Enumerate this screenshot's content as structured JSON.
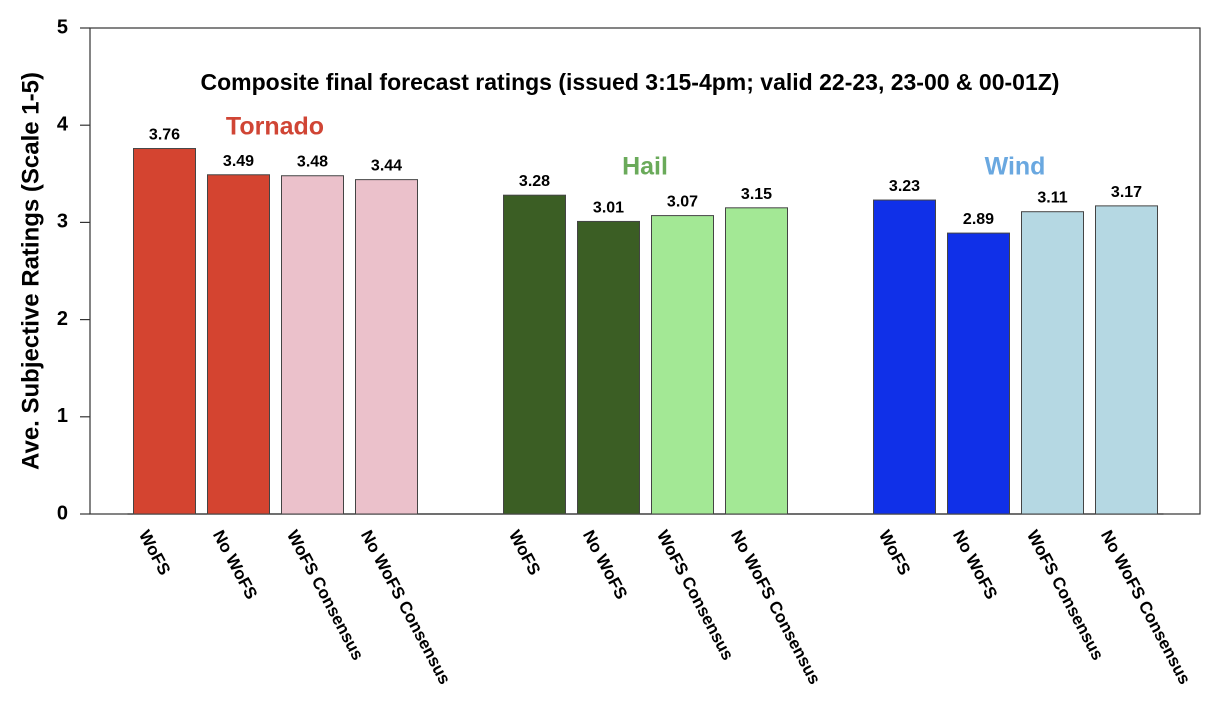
{
  "chart_data": {
    "type": "bar",
    "title": "Composite final forecast ratings (issued 3:15-4pm; valid 22-23, 23-00 & 00-01Z)",
    "y_label": "Ave. Subjective Ratings (Scale 1-5)",
    "categories": [
      "WoFS",
      "No WoFS",
      "WoFS Consensus",
      "No WoFS Consensus",
      null,
      "WoFS",
      "No WoFS",
      "WoFS Consensus",
      "No WoFS Consensus",
      null,
      "WoFS",
      "No WoFS",
      "WoFS Consensus",
      "No WoFS Consensus"
    ],
    "values": [
      3.76,
      3.49,
      3.48,
      3.44,
      null,
      3.28,
      3.01,
      3.07,
      3.15,
      null,
      3.23,
      2.89,
      3.11,
      3.17
    ],
    "colors": [
      "#d44430",
      "#d44430",
      "#ebc1cb",
      "#ebc1cb",
      null,
      "#3b5e24",
      "#3b5e24",
      "#a3e895",
      "#a3e895",
      null,
      "#1030e8",
      "#1030e8",
      "#b5d8e3",
      "#b5d8e3"
    ],
    "annotations": [
      {
        "text": "Tornado",
        "color": "#d04535"
      },
      {
        "text": "Hail",
        "color": "#6aaa5a"
      },
      {
        "text": "Wind",
        "color": "#6aa8e0"
      }
    ],
    "ylim": [
      0,
      5
    ],
    "yticks": [
      0,
      1,
      2,
      3,
      4,
      5
    ]
  }
}
